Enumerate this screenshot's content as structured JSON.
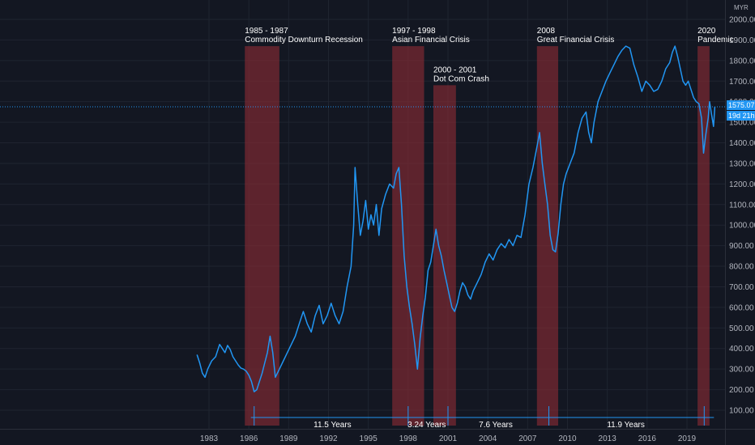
{
  "chart_data": {
    "type": "line",
    "currency_unit": "MYR",
    "ylim": [
      50,
      2000
    ],
    "y_ticks": [
      "100.00",
      "200.00",
      "300.00",
      "400.00",
      "500.00",
      "600.00",
      "700.00",
      "800.00",
      "900.00",
      "1000.00",
      "1100.00",
      "1200.00",
      "1300.00",
      "1400.00",
      "1500.00",
      "1600.00",
      "1700.00",
      "1800.00",
      "1900.00",
      "2000.00"
    ],
    "xlim": [
      1981.0,
      2022.0
    ],
    "x_ticks": [
      {
        "year": 1983,
        "label": "1983"
      },
      {
        "year": 1986,
        "label": "1986"
      },
      {
        "year": 1989,
        "label": "1989"
      },
      {
        "year": 1992,
        "label": "1992"
      },
      {
        "year": 1995,
        "label": "1995"
      },
      {
        "year": 1998,
        "label": "1998"
      },
      {
        "year": 2001,
        "label": "2001"
      },
      {
        "year": 2004,
        "label": "2004"
      },
      {
        "year": 2007,
        "label": "2007"
      },
      {
        "year": 2010,
        "label": "2010"
      },
      {
        "year": 2013,
        "label": "2013"
      },
      {
        "year": 2016,
        "label": "2016"
      },
      {
        "year": 2019,
        "label": "2019"
      }
    ],
    "last_price": "1575.07",
    "countdown": "19d 21h",
    "last_value": 1575,
    "series": [
      {
        "color": "#2196f3",
        "points": [
          [
            1982.1,
            370
          ],
          [
            1982.3,
            330
          ],
          [
            1982.5,
            280
          ],
          [
            1982.7,
            260
          ],
          [
            1982.9,
            300
          ],
          [
            1983.2,
            340
          ],
          [
            1983.5,
            360
          ],
          [
            1983.8,
            420
          ],
          [
            1984.0,
            400
          ],
          [
            1984.2,
            380
          ],
          [
            1984.4,
            415
          ],
          [
            1984.6,
            395
          ],
          [
            1984.8,
            360
          ],
          [
            1985.0,
            340
          ],
          [
            1985.2,
            320
          ],
          [
            1985.4,
            305
          ],
          [
            1985.6,
            300
          ],
          [
            1985.8,
            290
          ],
          [
            1986.0,
            270
          ],
          [
            1986.2,
            240
          ],
          [
            1986.4,
            190
          ],
          [
            1986.6,
            200
          ],
          [
            1986.8,
            240
          ],
          [
            1987.0,
            280
          ],
          [
            1987.2,
            330
          ],
          [
            1987.4,
            380
          ],
          [
            1987.6,
            460
          ],
          [
            1987.8,
            380
          ],
          [
            1988.0,
            260
          ],
          [
            1988.3,
            300
          ],
          [
            1988.6,
            340
          ],
          [
            1988.9,
            380
          ],
          [
            1989.2,
            420
          ],
          [
            1989.5,
            460
          ],
          [
            1989.8,
            520
          ],
          [
            1990.1,
            580
          ],
          [
            1990.4,
            520
          ],
          [
            1990.7,
            480
          ],
          [
            1991.0,
            560
          ],
          [
            1991.3,
            610
          ],
          [
            1991.6,
            520
          ],
          [
            1991.9,
            560
          ],
          [
            1992.2,
            620
          ],
          [
            1992.5,
            560
          ],
          [
            1992.8,
            520
          ],
          [
            1993.1,
            580
          ],
          [
            1993.4,
            700
          ],
          [
            1993.7,
            800
          ],
          [
            1993.9,
            1000
          ],
          [
            1994.0,
            1280
          ],
          [
            1994.2,
            1100
          ],
          [
            1994.4,
            950
          ],
          [
            1994.6,
            1020
          ],
          [
            1994.8,
            1120
          ],
          [
            1995.0,
            980
          ],
          [
            1995.2,
            1050
          ],
          [
            1995.4,
            1000
          ],
          [
            1995.6,
            1100
          ],
          [
            1995.8,
            950
          ],
          [
            1996.0,
            1080
          ],
          [
            1996.3,
            1150
          ],
          [
            1996.6,
            1200
          ],
          [
            1996.9,
            1180
          ],
          [
            1997.1,
            1250
          ],
          [
            1997.3,
            1280
          ],
          [
            1997.5,
            1100
          ],
          [
            1997.7,
            850
          ],
          [
            1997.9,
            700
          ],
          [
            1998.1,
            600
          ],
          [
            1998.3,
            520
          ],
          [
            1998.5,
            420
          ],
          [
            1998.7,
            300
          ],
          [
            1998.9,
            450
          ],
          [
            1999.1,
            560
          ],
          [
            1999.3,
            650
          ],
          [
            1999.5,
            780
          ],
          [
            1999.7,
            820
          ],
          [
            1999.9,
            900
          ],
          [
            2000.1,
            980
          ],
          [
            2000.3,
            900
          ],
          [
            2000.5,
            850
          ],
          [
            2000.7,
            780
          ],
          [
            2000.9,
            720
          ],
          [
            2001.1,
            660
          ],
          [
            2001.3,
            600
          ],
          [
            2001.5,
            580
          ],
          [
            2001.7,
            620
          ],
          [
            2001.9,
            680
          ],
          [
            2002.1,
            720
          ],
          [
            2002.3,
            700
          ],
          [
            2002.5,
            660
          ],
          [
            2002.7,
            640
          ],
          [
            2002.9,
            680
          ],
          [
            2003.2,
            720
          ],
          [
            2003.5,
            760
          ],
          [
            2003.8,
            820
          ],
          [
            2004.1,
            860
          ],
          [
            2004.4,
            830
          ],
          [
            2004.7,
            880
          ],
          [
            2005.0,
            910
          ],
          [
            2005.3,
            890
          ],
          [
            2005.6,
            930
          ],
          [
            2005.9,
            900
          ],
          [
            2006.2,
            950
          ],
          [
            2006.5,
            940
          ],
          [
            2006.8,
            1050
          ],
          [
            2007.1,
            1200
          ],
          [
            2007.4,
            1280
          ],
          [
            2007.7,
            1380
          ],
          [
            2007.9,
            1450
          ],
          [
            2008.1,
            1300
          ],
          [
            2008.3,
            1200
          ],
          [
            2008.5,
            1100
          ],
          [
            2008.7,
            950
          ],
          [
            2008.9,
            880
          ],
          [
            2009.1,
            870
          ],
          [
            2009.3,
            960
          ],
          [
            2009.5,
            1100
          ],
          [
            2009.7,
            1200
          ],
          [
            2009.9,
            1250
          ],
          [
            2010.2,
            1300
          ],
          [
            2010.5,
            1350
          ],
          [
            2010.8,
            1450
          ],
          [
            2011.1,
            1520
          ],
          [
            2011.4,
            1550
          ],
          [
            2011.6,
            1450
          ],
          [
            2011.8,
            1400
          ],
          [
            2012.0,
            1500
          ],
          [
            2012.3,
            1600
          ],
          [
            2012.6,
            1650
          ],
          [
            2012.9,
            1700
          ],
          [
            2013.2,
            1740
          ],
          [
            2013.5,
            1780
          ],
          [
            2013.8,
            1820
          ],
          [
            2014.1,
            1850
          ],
          [
            2014.4,
            1870
          ],
          [
            2014.7,
            1860
          ],
          [
            2015.0,
            1780
          ],
          [
            2015.3,
            1720
          ],
          [
            2015.6,
            1650
          ],
          [
            2015.9,
            1700
          ],
          [
            2016.2,
            1680
          ],
          [
            2016.5,
            1650
          ],
          [
            2016.8,
            1660
          ],
          [
            2017.1,
            1700
          ],
          [
            2017.4,
            1760
          ],
          [
            2017.7,
            1790
          ],
          [
            2017.9,
            1840
          ],
          [
            2018.1,
            1870
          ],
          [
            2018.3,
            1820
          ],
          [
            2018.5,
            1760
          ],
          [
            2018.7,
            1700
          ],
          [
            2018.9,
            1680
          ],
          [
            2019.1,
            1700
          ],
          [
            2019.3,
            1660
          ],
          [
            2019.5,
            1620
          ],
          [
            2019.7,
            1600
          ],
          [
            2019.9,
            1590
          ],
          [
            2020.1,
            1520
          ],
          [
            2020.25,
            1350
          ],
          [
            2020.4,
            1430
          ],
          [
            2020.6,
            1520
          ],
          [
            2020.7,
            1600
          ],
          [
            2020.85,
            1540
          ],
          [
            2021.0,
            1480
          ],
          [
            2021.1,
            1575
          ]
        ]
      }
    ],
    "shaded_periods": [
      {
        "start": 1985.7,
        "end": 1988.3,
        "top": 1870,
        "label1": "1985 - 1987",
        "label2": "Commodity Downturn Recession"
      },
      {
        "start": 1996.8,
        "end": 1999.2,
        "top": 1870,
        "label1": "1997 - 1998",
        "label2": "Asian Financial Crisis"
      },
      {
        "start": 1999.9,
        "end": 2001.6,
        "top": 1680,
        "label1": "2000 - 2001",
        "label2": "Dot Com Crash"
      },
      {
        "start": 2007.7,
        "end": 2009.3,
        "top": 1870,
        "label1": "2008",
        "label2": "Great Financial Crisis"
      },
      {
        "start": 2019.8,
        "end": 2020.7,
        "top": 1870,
        "label1": "2020",
        "label2": "Pandemic"
      }
    ],
    "durations": [
      {
        "label": "11.5 Years",
        "at": 1992.3
      },
      {
        "label": "3.24 Years",
        "at": 1999.4
      },
      {
        "label": "7.6 Years",
        "at": 2004.6
      },
      {
        "label": "11.9 Years",
        "at": 2014.4
      }
    ],
    "duration_markers": [
      1986.4,
      1998.0,
      2001.0,
      2008.6,
      2020.3
    ]
  }
}
